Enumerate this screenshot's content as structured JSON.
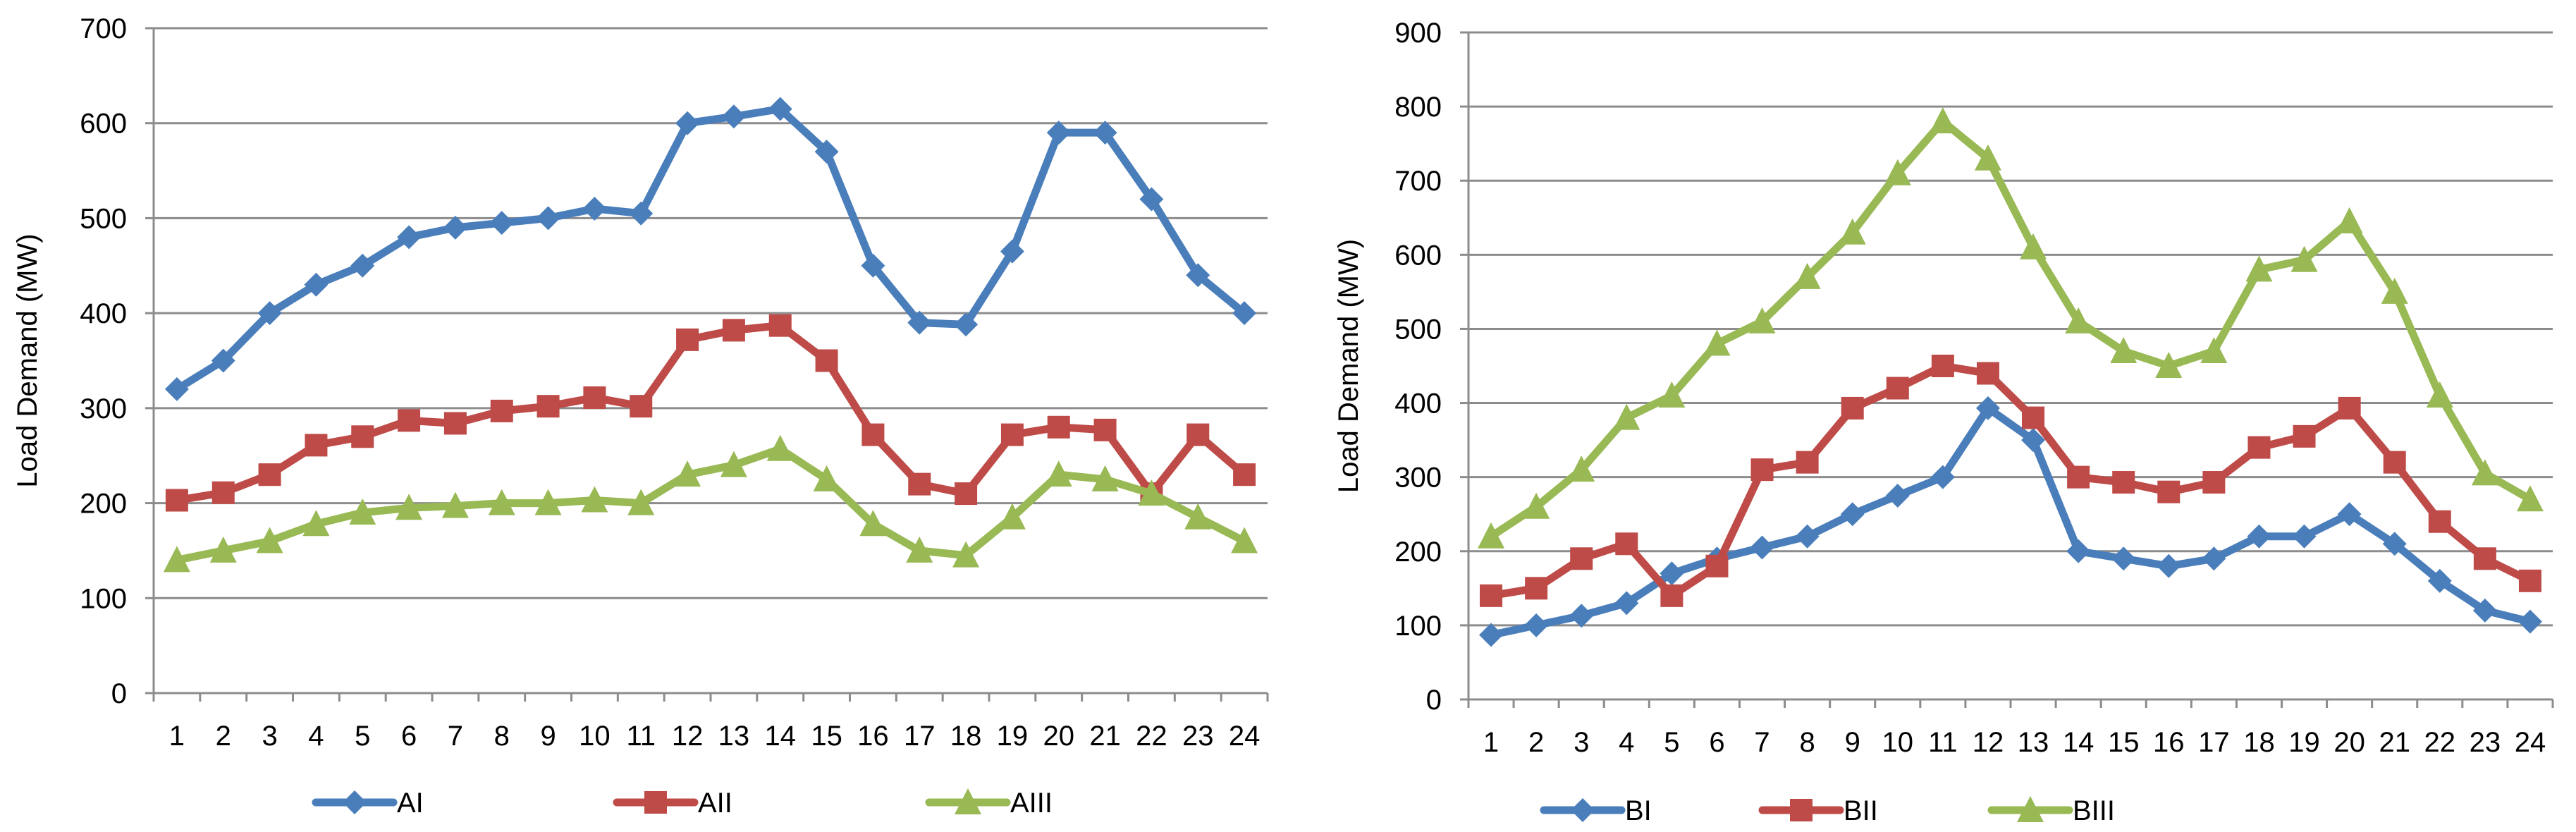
{
  "chart_data": [
    {
      "type": "line",
      "title": "",
      "xlabel": "",
      "ylabel": "Load Demand (MW)",
      "ylim": [
        0,
        700
      ],
      "yticks": [
        0,
        100,
        200,
        300,
        400,
        500,
        600,
        700
      ],
      "grid": true,
      "legend": "bottom",
      "categories": [
        "1",
        "2",
        "3",
        "4",
        "5",
        "6",
        "7",
        "8",
        "9",
        "10",
        "11",
        "12",
        "13",
        "14",
        "15",
        "16",
        "17",
        "18",
        "19",
        "20",
        "21",
        "22",
        "23",
        "24"
      ],
      "series": [
        {
          "name": "AI",
          "color": "#4a7ebb",
          "marker": "diamond",
          "values": [
            320,
            350,
            400,
            430,
            450,
            480,
            490,
            495,
            500,
            510,
            505,
            600,
            607,
            615,
            570,
            450,
            390,
            388,
            465,
            590,
            590,
            520,
            440,
            400
          ]
        },
        {
          "name": "AII",
          "color": "#be4b48",
          "marker": "square",
          "values": [
            203,
            211,
            230,
            261,
            270,
            287,
            284,
            297,
            302,
            311,
            302,
            372,
            382,
            387,
            350,
            272,
            220,
            210,
            272,
            280,
            277,
            210,
            272,
            230
          ]
        },
        {
          "name": "AIII",
          "color": "#98b954",
          "marker": "triangle",
          "values": [
            140,
            150,
            160,
            178,
            190,
            195,
            197,
            200,
            200,
            203,
            200,
            230,
            240,
            257,
            225,
            178,
            150,
            145,
            185,
            230,
            225,
            210,
            185,
            160
          ]
        }
      ]
    },
    {
      "type": "line",
      "title": "",
      "xlabel": "",
      "ylabel": "Load Demand (MW)",
      "ylim": [
        0,
        900
      ],
      "yticks": [
        0,
        100,
        200,
        300,
        400,
        500,
        600,
        700,
        800,
        900
      ],
      "grid": true,
      "legend": "bottom",
      "categories": [
        "1",
        "2",
        "3",
        "4",
        "5",
        "6",
        "7",
        "8",
        "9",
        "10",
        "11",
        "12",
        "13",
        "14",
        "15",
        "16",
        "17",
        "18",
        "19",
        "20",
        "21",
        "22",
        "23",
        "24"
      ],
      "series": [
        {
          "name": "BI",
          "color": "#4a7ebb",
          "marker": "diamond",
          "values": [
            87,
            100,
            113,
            130,
            170,
            190,
            205,
            220,
            250,
            275,
            300,
            393,
            350,
            200,
            190,
            180,
            190,
            220,
            220,
            250,
            210,
            160,
            120,
            105
          ]
        },
        {
          "name": "BII",
          "color": "#be4b48",
          "marker": "square",
          "values": [
            140,
            150,
            190,
            210,
            140,
            180,
            310,
            320,
            393,
            420,
            450,
            440,
            380,
            300,
            293,
            280,
            293,
            340,
            355,
            393,
            320,
            240,
            190,
            160
          ]
        },
        {
          "name": "BIII",
          "color": "#98b954",
          "marker": "triangle",
          "values": [
            220,
            260,
            310,
            380,
            410,
            480,
            510,
            570,
            630,
            710,
            780,
            730,
            610,
            510,
            470,
            450,
            470,
            580,
            593,
            645,
            550,
            410,
            305,
            270
          ]
        }
      ]
    }
  ]
}
